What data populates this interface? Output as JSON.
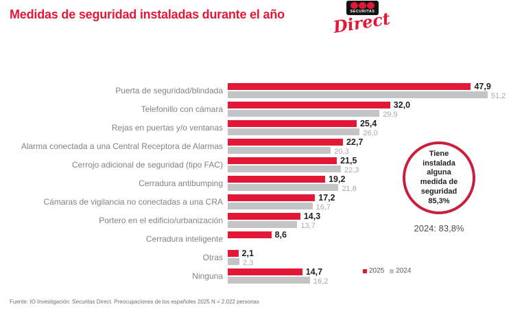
{
  "header": {
    "title": "Medidas de seguridad instaladas durante el año",
    "logo_top": "SECURITAS",
    "logo_script": "Direct"
  },
  "chart_data": {
    "type": "bar",
    "orientation": "horizontal",
    "title": "Medidas de seguridad instaladas durante el año",
    "grid": false,
    "xlim": [
      0,
      55
    ],
    "value_format": "decimal-comma-1",
    "legend_position": "bottom-right",
    "categories": [
      "Puerta de seguridad/blindada",
      "Telefonillo con cámara",
      "Rejas en puertas y/o ventanas",
      "Alarma conectada a una Central Receptora de Alarmas",
      "Cerrojo adicional de seguridad (tipo FAC)",
      "Cerradura antibumping",
      "Cámaras de vigilancia no conectadas a una CRA",
      "Portero en el edificio/urbanización",
      "Cerradura inteligente",
      "Otras",
      "Ninguna"
    ],
    "series": [
      {
        "name": "2025",
        "color": "#e31837",
        "values": [
          47.9,
          32.0,
          25.4,
          22.7,
          21.5,
          19.2,
          17.2,
          14.3,
          8.6,
          2.1,
          14.7
        ]
      },
      {
        "name": "2024",
        "color": "#c3c4c6",
        "values": [
          51.2,
          29.9,
          26.0,
          20.3,
          22.3,
          21.8,
          16.7,
          13.7,
          null,
          2.3,
          16.2
        ]
      }
    ]
  },
  "summary": {
    "circle_text": "Tiene instalada alguna medida de seguridad 85,3%",
    "note_2024": "2024: 83,8%"
  },
  "legend": {
    "series_2025_label": "2025",
    "series_2024_label": "2024"
  },
  "footer": {
    "source": "Fuente: IO Investigación: Securitas Direct. Preocupaciones de los españoles 2025    N = 2.022 personas"
  },
  "colors": {
    "brand_red": "#e31837",
    "bar_gray": "#c3c4c6"
  }
}
